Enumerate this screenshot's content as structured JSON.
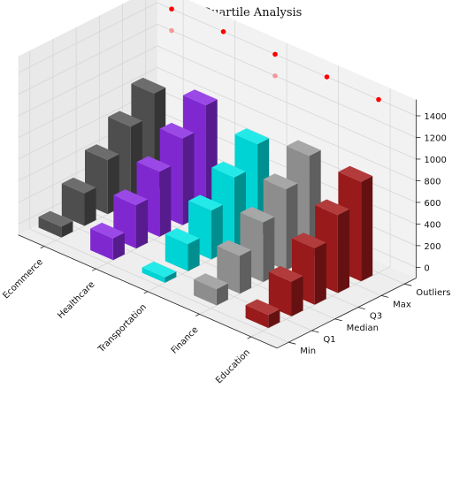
{
  "chart_data": {
    "type": "bar3d",
    "title": "Industry Quartile Analysis",
    "xlabel": "",
    "ylabel": "",
    "zlabel": "",
    "categories": [
      "Ecommerce",
      "Healthcare",
      "Transportation",
      "Finance",
      "Education"
    ],
    "depth_categories": [
      "Min",
      "Q1",
      "Median",
      "Q3",
      "Max",
      "Outliers"
    ],
    "zlim": [
      -100,
      1550
    ],
    "z_ticks": [
      0,
      200,
      400,
      600,
      800,
      1000,
      1200,
      1400
    ],
    "grid": true,
    "series": [
      {
        "name": "Ecommerce",
        "color": "#555555",
        "values": [
          100,
          300,
          500,
          700,
          900
        ]
      },
      {
        "name": "Healthcare",
        "color": "#8a2be2",
        "values": [
          200,
          400,
          600,
          800,
          1000
        ]
      },
      {
        "name": "Transportation",
        "color": "#00e5e5",
        "values": [
          50,
          250,
          450,
          650,
          850
        ]
      },
      {
        "name": "Finance",
        "color": "#999999",
        "values": [
          150,
          350,
          550,
          750,
          950
        ]
      },
      {
        "name": "Education",
        "color": "#a51c1c",
        "values": [
          120,
          320,
          520,
          720,
          920
        ]
      }
    ],
    "outliers": [
      {
        "category": "Ecommerce",
        "values": [
          1500,
          1300
        ]
      },
      {
        "category": "Healthcare",
        "values": [
          1500
        ]
      },
      {
        "category": "Transportation",
        "values": [
          1500,
          1300
        ]
      },
      {
        "category": "Finance",
        "values": [
          1500
        ]
      },
      {
        "category": "Education",
        "values": [
          1500
        ]
      }
    ],
    "outlier_color": "#ff0000"
  }
}
